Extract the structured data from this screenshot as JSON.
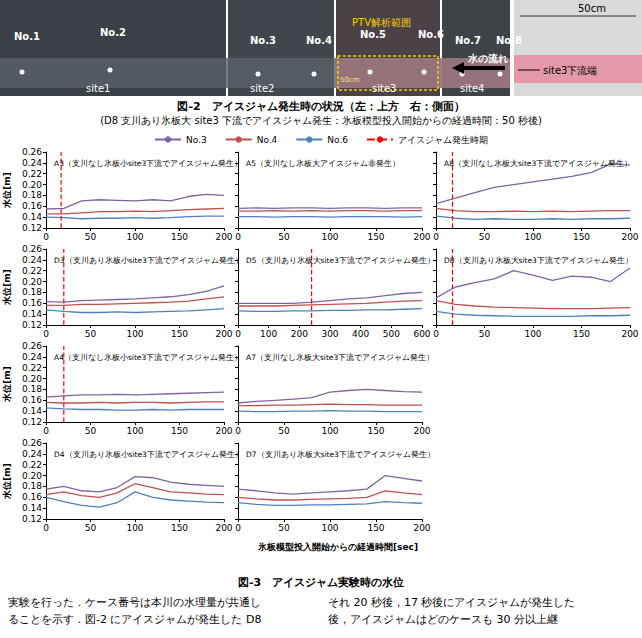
{
  "figure2": {
    "photo_labels": {
      "points": [
        "No.1",
        "No.2",
        "No.3",
        "No.4",
        "No.5",
        "No.6",
        "No.7",
        "No.8"
      ],
      "sites": [
        "site1",
        "site2",
        "site3",
        "site4"
      ],
      "ptv": "PTV解析範囲",
      "scale": "50cm",
      "flow": "水の流れ",
      "side_scale": "50cm",
      "side_end": "site3下流端"
    },
    "caption": "図-2　アイスジャム発生時の状況（左：上方　右：側面）",
    "subcaption": "(D8 支川あり氷板大 site3 下流でアイスジャム発生：氷板模型投入開始からの経過時間：50 秒後)"
  },
  "figure3": {
    "legend": "top",
    "xlabel": "氷板模型投入開始からの経過時間[sec]",
    "caption": "図-3　アイスジャム実験時の水位"
  },
  "chart_data": [
    {
      "type": "line",
      "title": "A3（支川なし氷板小site3下流でアイスジャム発生）",
      "ylabel": "水位[m]",
      "x": [
        0,
        20,
        40,
        60,
        80,
        100,
        120,
        140,
        160,
        180,
        200
      ],
      "series": [
        {
          "name": "No.3",
          "color": "#8064a2",
          "values": [
            0.155,
            0.156,
            0.17,
            0.172,
            0.171,
            0.17,
            0.172,
            0.17,
            0.178,
            0.182,
            0.18
          ]
        },
        {
          "name": "No.4",
          "color": "#c0504d",
          "values": [
            0.146,
            0.146,
            0.148,
            0.15,
            0.15,
            0.151,
            0.15,
            0.152,
            0.154,
            0.155,
            0.156
          ]
        },
        {
          "name": "No.6",
          "color": "#4f81bd",
          "values": [
            0.14,
            0.139,
            0.137,
            0.138,
            0.138,
            0.139,
            0.138,
            0.139,
            0.141,
            0.142,
            0.142
          ]
        }
      ],
      "jam": {
        "name": "アイスジャム発生時期",
        "color": "#ff0000",
        "line_style": "dashed",
        "x": 17
      },
      "xlim": [
        0,
        200
      ],
      "xticks": [
        0,
        50,
        100,
        150,
        200
      ],
      "ylim": [
        0.12,
        0.26
      ],
      "yticks": [
        0.12,
        0.14,
        0.16,
        0.18,
        {
          "value": 0.2,
          "label": "0.20"
        },
        0.22,
        0.24,
        0.26
      ],
      "grid": false
    },
    {
      "type": "line",
      "title": "A5（支川なし氷板大アイスジャム非発生）",
      "tick_labels": "x",
      "x": [
        0,
        20,
        40,
        60,
        80,
        100,
        120,
        140,
        160,
        180,
        200
      ],
      "series": [
        {
          "name": "No.3",
          "color": "#8064a2",
          "values": [
            0.156,
            0.157,
            0.156,
            0.157,
            0.157,
            0.156,
            0.157,
            0.157,
            0.156,
            0.157,
            0.157
          ]
        },
        {
          "name": "No.4",
          "color": "#c0504d",
          "values": [
            0.151,
            0.151,
            0.152,
            0.151,
            0.152,
            0.151,
            0.152,
            0.152,
            0.151,
            0.152,
            0.152
          ]
        },
        {
          "name": "No.6",
          "color": "#4f81bd",
          "values": [
            0.141,
            0.141,
            0.14,
            0.141,
            0.141,
            0.14,
            0.141,
            0.141,
            0.141,
            0.14,
            0.141
          ]
        }
      ],
      "xlim": [
        0,
        200
      ],
      "xticks": [
        0,
        50,
        100,
        150,
        200
      ],
      "ylim": [
        0.12,
        0.26
      ],
      "yticks": [
        0.12,
        0.14,
        0.16,
        0.18,
        {
          "value": 0.2,
          "label": "0.20"
        },
        0.22,
        0.24,
        0.26
      ],
      "grid": false
    },
    {
      "type": "line",
      "title": "A8（支川なし氷板大site3下流でアイスジャム発生）",
      "tick_labels": "x",
      "x": [
        0,
        20,
        40,
        60,
        80,
        100,
        120,
        140,
        160,
        180,
        200
      ],
      "series": [
        {
          "name": "No.3",
          "color": "#8064a2",
          "values": [
            0.165,
            0.175,
            0.185,
            0.195,
            0.2,
            0.205,
            0.21,
            0.215,
            0.222,
            0.238,
            0.236
          ]
        },
        {
          "name": "No.4",
          "color": "#c0504d",
          "values": [
            0.156,
            0.152,
            0.15,
            0.15,
            0.151,
            0.15,
            0.151,
            0.15,
            0.151,
            0.152,
            0.152
          ]
        },
        {
          "name": "No.6",
          "color": "#4f81bd",
          "values": [
            0.142,
            0.138,
            0.136,
            0.137,
            0.136,
            0.136,
            0.137,
            0.136,
            0.137,
            0.137,
            0.138
          ]
        }
      ],
      "jam": {
        "name": "アイスジャム発生時期",
        "color": "#ff0000",
        "line_style": "dashed",
        "x": 17
      },
      "xlim": [
        0,
        200
      ],
      "xticks": [
        0,
        50,
        100,
        150,
        200
      ],
      "ylim": [
        0.12,
        0.26
      ],
      "yticks": [
        0.12,
        0.14,
        0.16,
        0.18,
        {
          "value": 0.2,
          "label": "0.20"
        },
        0.22,
        0.24,
        0.26
      ],
      "grid": false
    },
    {
      "type": "line",
      "title": "D3（支川あり氷板小site3下流でアイスジャム発生）",
      "ylabel": "水位[m]",
      "x": [
        0,
        20,
        40,
        60,
        80,
        100,
        120,
        140,
        160,
        180,
        200
      ],
      "series": [
        {
          "name": "No.3",
          "color": "#8064a2",
          "values": [
            0.163,
            0.162,
            0.165,
            0.166,
            0.167,
            0.168,
            0.17,
            0.172,
            0.176,
            0.182,
            0.192
          ]
        },
        {
          "name": "No.4",
          "color": "#c0504d",
          "values": [
            0.156,
            0.156,
            0.158,
            0.158,
            0.159,
            0.16,
            0.161,
            0.162,
            0.164,
            0.168,
            0.172
          ]
        },
        {
          "name": "No.6",
          "color": "#4f81bd",
          "values": [
            0.148,
            0.145,
            0.143,
            0.143,
            0.144,
            0.143,
            0.144,
            0.145,
            0.146,
            0.148,
            0.15
          ]
        }
      ],
      "jam": {
        "name": "アイスジャム発生時期",
        "color": "#ff0000",
        "line_style": "dashed",
        "x": 20
      },
      "xlim": [
        0,
        200
      ],
      "xticks": [
        0,
        50,
        100,
        150,
        200
      ],
      "ylim": [
        0.12,
        0.26
      ],
      "yticks": [
        0.12,
        0.14,
        0.16,
        0.18,
        {
          "value": 0.2,
          "label": "0.20"
        },
        0.22,
        0.24,
        0.26
      ],
      "grid": false
    },
    {
      "type": "line",
      "title": "D5（支川あり氷板大site3下流でアイスジャム発生）",
      "tick_labels": "x",
      "x": [
        0,
        60,
        120,
        180,
        240,
        300,
        360,
        420,
        480,
        540,
        600
      ],
      "series": [
        {
          "name": "No.3",
          "color": "#8064a2",
          "values": [
            0.16,
            0.16,
            0.16,
            0.16,
            0.162,
            0.165,
            0.168,
            0.17,
            0.174,
            0.178,
            0.18
          ]
        },
        {
          "name": "No.4",
          "color": "#c0504d",
          "values": [
            0.155,
            0.155,
            0.155,
            0.156,
            0.157,
            0.158,
            0.159,
            0.16,
            0.162,
            0.164,
            0.165
          ]
        },
        {
          "name": "No.6",
          "color": "#4f81bd",
          "values": [
            0.146,
            0.145,
            0.145,
            0.146,
            0.146,
            0.147,
            0.147,
            0.148,
            0.148,
            0.149,
            0.15
          ]
        }
      ],
      "jam": {
        "name": "アイスジャム発生時期",
        "color": "#ff0000",
        "line_style": "dashed",
        "x": 240
      },
      "xlim": [
        0,
        600
      ],
      "xticks": [
        0,
        100,
        200,
        300,
        400,
        500,
        600
      ],
      "ylim": [
        0.12,
        0.26
      ],
      "yticks": [
        0.12,
        0.14,
        0.16,
        0.18,
        {
          "value": 0.2,
          "label": "0.20"
        },
        0.22,
        0.24,
        0.26
      ],
      "grid": false
    },
    {
      "type": "line",
      "title": "D8（支川あり氷板大site3下流でアイスジャム発生）",
      "tick_labels": "x",
      "x": [
        0,
        20,
        40,
        60,
        80,
        100,
        120,
        140,
        160,
        180,
        200
      ],
      "series": [
        {
          "name": "No.3",
          "color": "#8064a2",
          "values": [
            0.17,
            0.19,
            0.198,
            0.205,
            0.22,
            0.212,
            0.202,
            0.21,
            0.208,
            0.2,
            0.225
          ]
        },
        {
          "name": "No.4",
          "color": "#c0504d",
          "values": [
            0.165,
            0.158,
            0.155,
            0.153,
            0.152,
            0.151,
            0.15,
            0.15,
            0.15,
            0.151,
            0.152
          ]
        },
        {
          "name": "No.6",
          "color": "#4f81bd",
          "values": [
            0.145,
            0.14,
            0.138,
            0.137,
            0.136,
            0.136,
            0.136,
            0.136,
            0.137,
            0.137,
            0.138
          ]
        }
      ],
      "jam": {
        "name": "アイスジャム発生時期",
        "color": "#ff0000",
        "line_style": "dashed",
        "x": 17
      },
      "xlim": [
        0,
        200
      ],
      "xticks": [
        0,
        50,
        100,
        150,
        200
      ],
      "ylim": [
        0.12,
        0.26
      ],
      "yticks": [
        0.12,
        0.14,
        0.16,
        0.18,
        {
          "value": 0.2,
          "label": "0.20"
        },
        0.22,
        0.24,
        0.26
      ],
      "grid": false
    },
    {
      "type": "line",
      "title": "A4（支川なし氷板小site3下流でアイスジャム発生）",
      "ylabel": "水位[m]",
      "x": [
        0,
        20,
        40,
        60,
        80,
        100,
        120,
        140,
        160,
        180,
        200
      ],
      "series": [
        {
          "name": "No.3",
          "color": "#8064a2",
          "values": [
            0.166,
            0.168,
            0.17,
            0.17,
            0.171,
            0.17,
            0.171,
            0.172,
            0.173,
            0.174,
            0.175
          ]
        },
        {
          "name": "No.4",
          "color": "#c0504d",
          "values": [
            0.156,
            0.155,
            0.155,
            0.156,
            0.155,
            0.156,
            0.156,
            0.155,
            0.156,
            0.157,
            0.157
          ]
        },
        {
          "name": "No.6",
          "color": "#4f81bd",
          "values": [
            0.146,
            0.144,
            0.143,
            0.143,
            0.142,
            0.142,
            0.143,
            0.142,
            0.143,
            0.143,
            0.143
          ]
        }
      ],
      "jam": {
        "name": "アイスジャム発生時期",
        "color": "#ff0000",
        "line_style": "dashed",
        "x": 20
      },
      "xlim": [
        0,
        200
      ],
      "xticks": [
        0,
        50,
        100,
        150,
        200
      ],
      "ylim": [
        0.12,
        0.26
      ],
      "yticks": [
        0.12,
        0.14,
        0.16,
        0.18,
        {
          "value": 0.2,
          "label": "0.20"
        },
        0.22,
        0.24,
        0.26
      ],
      "grid": false
    },
    {
      "type": "line",
      "title": "A7（支川なし氷板大site3下流でアイスジャム発生）",
      "tick_labels": "x",
      "x": [
        0,
        20,
        40,
        60,
        80,
        100,
        120,
        140,
        160,
        180,
        200
      ],
      "series": [
        {
          "name": "No.3",
          "color": "#8064a2",
          "values": [
            0.155,
            0.158,
            0.16,
            0.162,
            0.165,
            0.175,
            0.178,
            0.18,
            0.178,
            0.176,
            0.175
          ]
        },
        {
          "name": "No.4",
          "color": "#c0504d",
          "values": [
            0.15,
            0.15,
            0.151,
            0.151,
            0.152,
            0.153,
            0.152,
            0.152,
            0.151,
            0.151,
            0.151
          ]
        },
        {
          "name": "No.6",
          "color": "#4f81bd",
          "values": [
            0.14,
            0.139,
            0.139,
            0.14,
            0.14,
            0.141,
            0.14,
            0.14,
            0.139,
            0.139,
            0.139
          ]
        }
      ],
      "xlim": [
        0,
        200
      ],
      "xticks": [
        0,
        50,
        100,
        150,
        200
      ],
      "ylim": [
        0.12,
        0.26
      ],
      "yticks": [
        0.12,
        0.14,
        0.16,
        0.18,
        {
          "value": 0.2,
          "label": "0.20"
        },
        0.22,
        0.24,
        0.26
      ],
      "grid": false
    },
    {
      "type": "line",
      "title": "D4（支川あり氷板小site3下流でアイスジャム発生）",
      "ylabel": "水位[m]",
      "x": [
        0,
        20,
        40,
        60,
        80,
        100,
        120,
        140,
        160,
        180,
        200
      ],
      "series": [
        {
          "name": "No.3",
          "color": "#8064a2",
          "values": [
            0.175,
            0.18,
            0.172,
            0.17,
            0.178,
            0.198,
            0.196,
            0.188,
            0.184,
            0.182,
            0.18
          ]
        },
        {
          "name": "No.4",
          "color": "#c0504d",
          "values": [
            0.165,
            0.17,
            0.163,
            0.16,
            0.168,
            0.185,
            0.178,
            0.17,
            0.168,
            0.166,
            0.165
          ]
        },
        {
          "name": "No.6",
          "color": "#4f81bd",
          "values": [
            0.16,
            0.152,
            0.145,
            0.142,
            0.15,
            0.17,
            0.16,
            0.155,
            0.153,
            0.151,
            0.15
          ]
        }
      ],
      "xlim": [
        0,
        200
      ],
      "xticks": [
        0,
        50,
        100,
        150,
        200
      ],
      "ylim": [
        0.12,
        0.26
      ],
      "yticks": [
        0.12,
        0.14,
        0.16,
        0.18,
        {
          "value": 0.2,
          "label": "0.20"
        },
        0.22,
        0.24,
        0.26
      ],
      "grid": false
    },
    {
      "type": "line",
      "title": "D7（支川あり氷板大site3下流でアイスジャム発生）",
      "tick_labels": "x",
      "x": [
        0,
        20,
        40,
        60,
        80,
        100,
        120,
        140,
        160,
        180,
        200
      ],
      "series": [
        {
          "name": "No.3",
          "color": "#8064a2",
          "values": [
            0.175,
            0.172,
            0.168,
            0.166,
            0.168,
            0.17,
            0.172,
            0.175,
            0.2,
            0.195,
            0.19
          ]
        },
        {
          "name": "No.4",
          "color": "#c0504d",
          "values": [
            0.16,
            0.157,
            0.155,
            0.155,
            0.156,
            0.157,
            0.158,
            0.16,
            0.172,
            0.168,
            0.165
          ]
        },
        {
          "name": "No.6",
          "color": "#4f81bd",
          "values": [
            0.15,
            0.147,
            0.145,
            0.145,
            0.146,
            0.146,
            0.147,
            0.148,
            0.152,
            0.15,
            0.149
          ]
        }
      ],
      "xlim": [
        0,
        200
      ],
      "xticks": [
        0,
        50,
        100,
        150,
        200
      ],
      "ylim": [
        0.12,
        0.26
      ],
      "yticks": [
        0.12,
        0.14,
        0.16,
        0.18,
        {
          "value": 0.2,
          "label": "0.20"
        },
        0.22,
        0.24,
        0.26
      ],
      "grid": false
    }
  ],
  "body_text": {
    "left": [
      "実験を行った．ケース番号は本川の水理量が共通し",
      "ることを示す．図-2 にアイスジャムが発生した D8"
    ],
    "right": [
      "それ 20 秒後，17 秒後にアイスジャムが発生した",
      "後，アイスジャムはどのケースも 30 分以上継"
    ]
  }
}
